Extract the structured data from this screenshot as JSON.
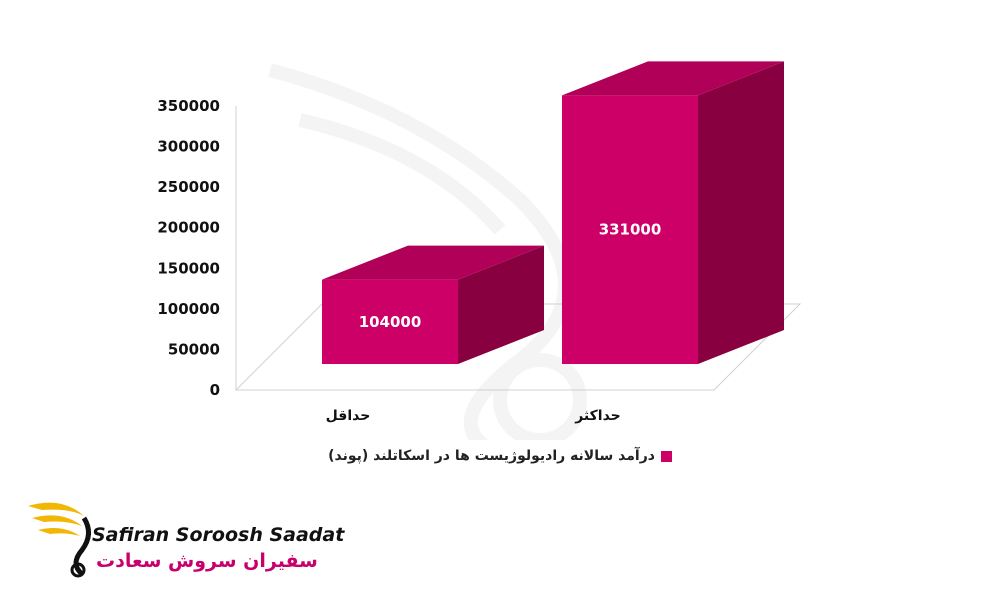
{
  "chart_data": {
    "type": "bar",
    "style": "3d",
    "title": "",
    "xlabel": "",
    "ylabel": "",
    "categories": [
      "حداقل",
      "حداکثر"
    ],
    "series": [
      {
        "name": "درآمد سالانه رادیولوژیست ها در اسکاتلند (پوند)",
        "values": [
          104000,
          331000
        ]
      }
    ],
    "data_labels": [
      "104000",
      "331000"
    ],
    "y_ticks": [
      "0",
      "50000",
      "100000",
      "150000",
      "200000",
      "250000",
      "300000",
      "350000"
    ],
    "ylim": [
      0,
      350000
    ],
    "grid": false,
    "legend_position": "bottom",
    "colors": {
      "bar_front": "#cc0066",
      "bar_top": "#b00058",
      "bar_side": "#88003f"
    }
  },
  "legend": {
    "label": "درآمد سالانه رادیولوژیست ها در اسکاتلند (پوند)",
    "color": "#cc0066"
  },
  "logo": {
    "latin": "Safiran Soroosh Saadat",
    "persian": "سفیران سروش سعادت",
    "icon": "golden-wing-swan-icon",
    "colors": {
      "wing": "#f2b705",
      "persian_text": "#c8006e"
    }
  }
}
